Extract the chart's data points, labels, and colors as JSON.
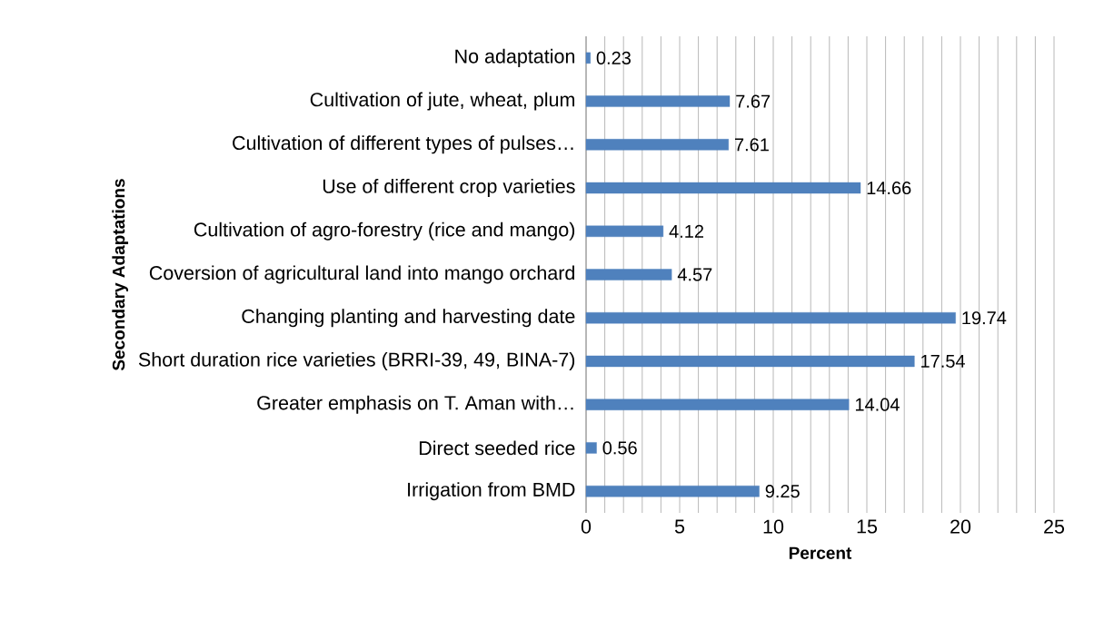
{
  "chart_data": {
    "type": "bar",
    "orientation": "horizontal",
    "xlabel": "Percent",
    "ylabel": "Secondary Adaptations",
    "categories": [
      "No adaptation",
      "Cultivation of jute, wheat, plum",
      "Cultivation of different types of pulses…",
      "Use of different crop varieties",
      "Cultivation of agro-forestry (rice and mango)",
      "Coversion of agricultural land into mango orchard",
      "Changing planting and harvesting date",
      "Short duration rice varieties (BRRI-39, 49, BINA-7)",
      "Greater emphasis on T. Aman with…",
      "Direct seeded rice",
      "Irrigation from BMD"
    ],
    "values": [
      0.23,
      7.67,
      7.61,
      14.66,
      4.12,
      4.57,
      19.74,
      17.54,
      14.04,
      0.56,
      9.25
    ],
    "color": "#4f81bd",
    "xlim": [
      0,
      25
    ],
    "xticks": [
      0,
      5,
      10,
      15,
      20,
      25
    ],
    "grid": "x",
    "data_labels": true
  }
}
